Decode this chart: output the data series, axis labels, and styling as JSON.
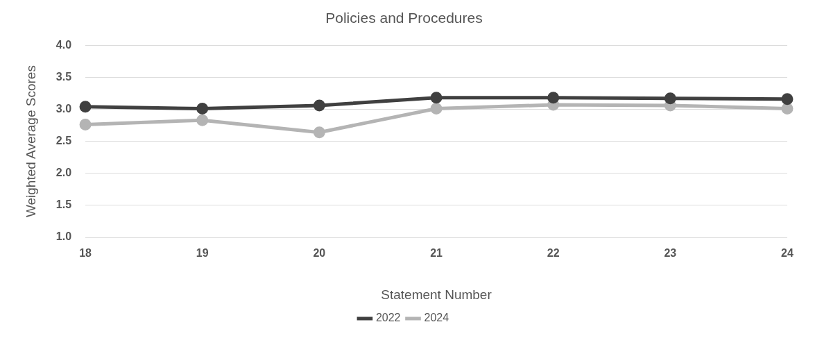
{
  "chart_data": {
    "type": "line",
    "title": "Policies and Procedures",
    "xlabel": "Statement Number",
    "ylabel": "Weighted Average Scores",
    "categories": [
      "18",
      "19",
      "20",
      "21",
      "22",
      "23",
      "24"
    ],
    "series": [
      {
        "name": "2022",
        "color": "#404040",
        "values": [
          3.04,
          3.01,
          3.06,
          3.18,
          3.18,
          3.17,
          3.16
        ]
      },
      {
        "name": "2024",
        "color": "#b4b4b4",
        "values": [
          2.76,
          2.83,
          2.64,
          3.01,
          3.07,
          3.06,
          3.01
        ]
      }
    ],
    "ylim": [
      1.0,
      4.0
    ],
    "yticks": [
      {
        "value": 1,
        "label": "1.0"
      },
      {
        "value": 1.5,
        "label": "1.5"
      },
      {
        "value": 2,
        "label": "2.0"
      },
      {
        "value": 2.5,
        "label": "2.5"
      },
      {
        "value": 3,
        "label": "3.0"
      },
      {
        "value": 3.5,
        "label": "3.5"
      },
      {
        "value": 4,
        "label": "4.0"
      }
    ],
    "grid": "y",
    "legend": "bottom",
    "marker": "circle",
    "line_style": "solid"
  }
}
